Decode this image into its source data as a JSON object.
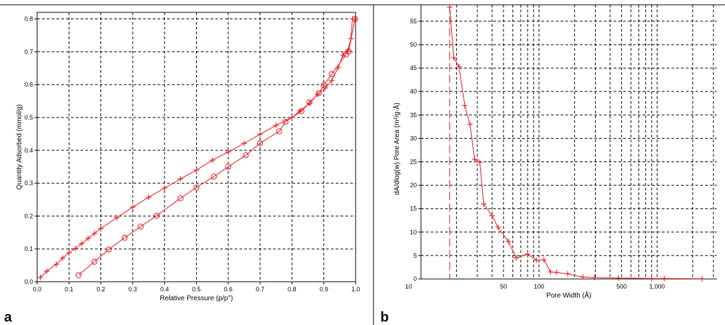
{
  "panels": [
    {
      "letter": "a"
    },
    {
      "letter": "b"
    }
  ],
  "chart_data": [
    {
      "type": "line",
      "title": "",
      "xlabel": "Relative Pressure (p/p°)",
      "ylabel": "Quantity Adsorbed (mmol/g)",
      "xlim": [
        0,
        1.0
      ],
      "ylim": [
        0,
        0.82
      ],
      "xticks": [
        "0.0",
        "0.1",
        "0.2",
        "0.3",
        "0.4",
        "0.5",
        "0.6",
        "0.7",
        "0.8",
        "0.9",
        "1.0"
      ],
      "yticks": [
        "0.0",
        "0.1",
        "0.2",
        "0.3",
        "0.4",
        "0.5",
        "0.6",
        "0.7",
        "0.8"
      ],
      "grid": true,
      "color": "#e8262d",
      "series": [
        {
          "marker": "plus",
          "x": [
            0.01,
            0.03,
            0.06,
            0.08,
            0.1,
            0.12,
            0.14,
            0.16,
            0.18,
            0.2,
            0.25,
            0.3,
            0.35,
            0.4,
            0.45,
            0.5,
            0.55,
            0.6,
            0.65,
            0.7,
            0.75,
            0.8,
            0.825,
            0.855,
            0.88,
            0.905,
            0.925,
            0.945,
            0.96,
            0.975,
            0.985,
            0.99,
            0.998
          ],
          "y": [
            0.013,
            0.032,
            0.053,
            0.072,
            0.088,
            0.101,
            0.116,
            0.132,
            0.147,
            0.162,
            0.195,
            0.227,
            0.257,
            0.285,
            0.313,
            0.34,
            0.37,
            0.395,
            0.421,
            0.449,
            0.476,
            0.5,
            0.52,
            0.543,
            0.57,
            0.59,
            0.612,
            0.652,
            0.69,
            0.703,
            0.74,
            0.8,
            0.8
          ]
        },
        {
          "marker": "circle",
          "x": [
            0.13,
            0.18,
            0.225,
            0.275,
            0.325,
            0.375,
            0.45,
            0.5,
            0.555,
            0.6,
            0.655,
            0.7,
            0.76,
            0.78,
            0.83,
            0.855,
            0.885,
            0.9,
            0.925,
            0.97,
            0.978,
            0.998
          ],
          "y": [
            0.02,
            0.061,
            0.098,
            0.134,
            0.168,
            0.201,
            0.254,
            0.287,
            0.32,
            0.35,
            0.385,
            0.422,
            0.458,
            0.487,
            0.519,
            0.546,
            0.574,
            0.598,
            0.632,
            0.692,
            0.701,
            0.8
          ]
        }
      ]
    },
    {
      "type": "line",
      "title": "",
      "xlabel": "Pore Width (Å)",
      "ylabel": "dA/dlog(w) Pore Area (m²/g·Å)",
      "xscale": "log",
      "xlim": [
        10,
        3200
      ],
      "ylim": [
        0,
        58.5
      ],
      "xticks": [
        {
          "value": 10,
          "label": "10"
        },
        {
          "value": 50,
          "label": "50"
        },
        {
          "value": 100,
          "label": "100"
        },
        {
          "value": 500,
          "label": "500"
        },
        {
          "value": 1000,
          "label": "1,000"
        }
      ],
      "xgrid_values": [
        20,
        30,
        40,
        50,
        60,
        70,
        80,
        90,
        100,
        200,
        300,
        400,
        500,
        600,
        700,
        800,
        900,
        1000,
        2000,
        3000
      ],
      "yticks": [
        0,
        5,
        10,
        15,
        20,
        25,
        30,
        35,
        40,
        45,
        50,
        55
      ],
      "grid": true,
      "color": "#e8262d",
      "vertical_dashed_line_x": 17.5,
      "series": [
        {
          "marker": "plus",
          "x": [
            17.5,
            19,
            21,
            23.5,
            26,
            28.5,
            31.5,
            34,
            40,
            45,
            55,
            64,
            80,
            95,
            110,
            125,
            140,
            175,
            235,
            295,
            470,
            900,
            1150,
            2400
          ],
          "y": [
            58.0,
            47.2,
            45.3,
            37.0,
            33.0,
            25.5,
            24.9,
            16.0,
            13.5,
            11.0,
            8.0,
            4.5,
            5.3,
            4.0,
            4.1,
            1.5,
            1.4,
            1.1,
            0.4,
            0.3,
            0.2,
            0.1,
            0.1,
            0.05
          ]
        }
      ]
    }
  ]
}
